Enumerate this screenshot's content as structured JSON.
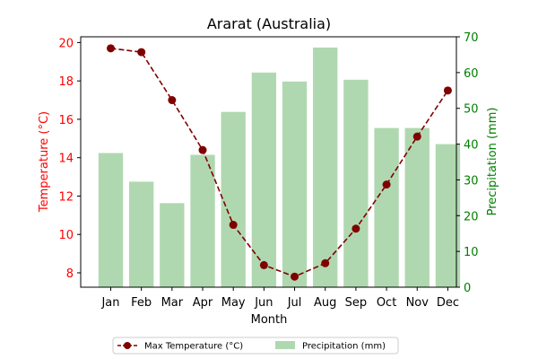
{
  "chart_data": {
    "type": "bar+line",
    "title": "Ararat (Australia)",
    "xlabel": "Month",
    "categories": [
      "Jan",
      "Feb",
      "Mar",
      "Apr",
      "May",
      "Jun",
      "Jul",
      "Aug",
      "Sep",
      "Oct",
      "Nov",
      "Dec"
    ],
    "series": [
      {
        "name": "Max Temperature (°C)",
        "kind": "line",
        "axis": "left",
        "color": "#800000",
        "values": [
          19.7,
          19.5,
          17.0,
          14.4,
          10.5,
          8.4,
          7.8,
          8.5,
          10.3,
          12.6,
          15.1,
          17.5
        ]
      },
      {
        "name": "Precipitation (mm)",
        "kind": "bar",
        "axis": "right",
        "color": "#b0d8b0",
        "values": [
          37.5,
          29.5,
          23.5,
          37.0,
          49.0,
          60.0,
          57.5,
          67.0,
          58.0,
          44.5,
          44.5,
          40.0
        ]
      }
    ],
    "y_left": {
      "label": "Temperature (°C)",
      "ylim": [
        7.25,
        20.3
      ],
      "ticks": [
        8,
        10,
        12,
        14,
        16,
        18,
        20
      ],
      "color": "#ff0000"
    },
    "y_right": {
      "label": "Precipitation (mm)",
      "ylim": [
        0,
        70
      ],
      "ticks": [
        0,
        10,
        20,
        30,
        40,
        50,
        60,
        70
      ],
      "color": "#008000"
    },
    "legend": {
      "position": "bottom-center",
      "entries": [
        "Max Temperature (°C)",
        "Precipitation (mm)"
      ]
    }
  }
}
